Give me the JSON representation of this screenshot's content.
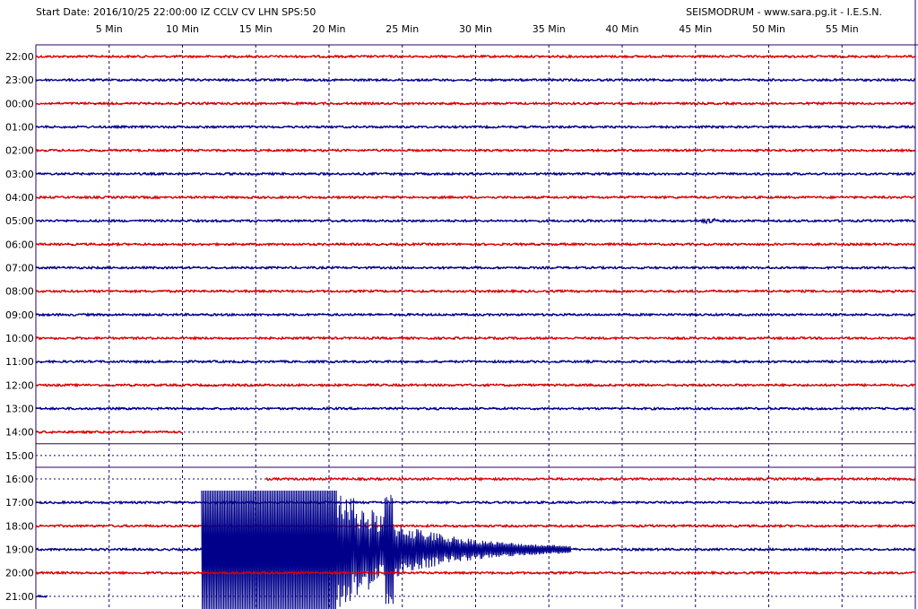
{
  "header": {
    "start_info": "Start Date: 2016/10/25 22:00:00 IZ CCLV CV LHN SPS:50",
    "credit": "SEISMODRUM - www.sara.pg.it - I.E.S.N."
  },
  "colors": {
    "red_trace": "#dd0000",
    "blue_trace": "#00008b",
    "grid": "#1a0070",
    "frame": "#2a0060",
    "background": "#ffffff"
  },
  "chart_data": {
    "type": "line",
    "title": "Start Date: 2016/10/25 22:00:00 IZ CCLV CV LHN SPS:50",
    "xlabel": "",
    "ylabel": "",
    "x_unit": "minutes past the hour",
    "xlim": [
      0,
      60
    ],
    "x_ticks": [
      5,
      10,
      15,
      20,
      25,
      30,
      35,
      40,
      45,
      50,
      55
    ],
    "x_tick_labels": [
      "5 Min",
      "10 Min",
      "15 Min",
      "20 Min",
      "25 Min",
      "30 Min",
      "35 Min",
      "40 Min",
      "45 Min",
      "50 Min",
      "55 Min"
    ],
    "grid": true,
    "rows": [
      {
        "label": "22:00",
        "color": "red",
        "start_min": 0,
        "end_min": 60,
        "amplitude": 1
      },
      {
        "label": "23:00",
        "color": "blue",
        "start_min": 0,
        "end_min": 60,
        "amplitude": 1
      },
      {
        "label": "00:00",
        "color": "red",
        "start_min": 0,
        "end_min": 60,
        "amplitude": 1
      },
      {
        "label": "01:00",
        "color": "blue",
        "start_min": 0,
        "end_min": 60,
        "amplitude": 1
      },
      {
        "label": "02:00",
        "color": "red",
        "start_min": 0,
        "end_min": 60,
        "amplitude": 1
      },
      {
        "label": "03:00",
        "color": "blue",
        "start_min": 0,
        "end_min": 60,
        "amplitude": 1
      },
      {
        "label": "04:00",
        "color": "red",
        "start_min": 0,
        "end_min": 60,
        "amplitude": 1
      },
      {
        "label": "05:00",
        "color": "blue",
        "start_min": 0,
        "end_min": 60,
        "amplitude": 1
      },
      {
        "label": "06:00",
        "color": "red",
        "start_min": 0,
        "end_min": 60,
        "amplitude": 1
      },
      {
        "label": "07:00",
        "color": "blue",
        "start_min": 0,
        "end_min": 60,
        "amplitude": 1
      },
      {
        "label": "08:00",
        "color": "red",
        "start_min": 0,
        "end_min": 60,
        "amplitude": 1
      },
      {
        "label": "09:00",
        "color": "blue",
        "start_min": 0,
        "end_min": 60,
        "amplitude": 1
      },
      {
        "label": "10:00",
        "color": "red",
        "start_min": 0,
        "end_min": 60,
        "amplitude": 1
      },
      {
        "label": "11:00",
        "color": "blue",
        "start_min": 0,
        "end_min": 60,
        "amplitude": 1
      },
      {
        "label": "12:00",
        "color": "red",
        "start_min": 0,
        "end_min": 60,
        "amplitude": 1
      },
      {
        "label": "13:00",
        "color": "blue",
        "start_min": 0,
        "end_min": 60,
        "amplitude": 1
      },
      {
        "label": "14:00",
        "color": "red",
        "start_min": 0,
        "end_min": 10,
        "amplitude": 1
      },
      {
        "label": "15:00",
        "color": "blue",
        "start_min": 0,
        "end_min": 0,
        "amplitude": 0
      },
      {
        "label": "16:00",
        "color": "red",
        "start_min": 15.7,
        "end_min": 60,
        "amplitude": 1
      },
      {
        "label": "17:00",
        "color": "blue",
        "start_min": 0,
        "end_min": 60,
        "amplitude": 1
      },
      {
        "label": "18:00",
        "color": "red",
        "start_min": 0,
        "end_min": 60,
        "amplitude": 1
      },
      {
        "label": "19:00",
        "color": "blue",
        "start_min": 0,
        "end_min": 60,
        "amplitude": 1,
        "event": {
          "onset_min": 11.3,
          "saturated_until_min": 20.5,
          "coda_end_min": 36.5
        }
      },
      {
        "label": "20:00",
        "color": "red",
        "start_min": 0,
        "end_min": 60,
        "amplitude": 1
      },
      {
        "label": "21:00",
        "color": "blue",
        "start_min": 0,
        "end_min": 0.8,
        "amplitude": 1
      }
    ]
  }
}
